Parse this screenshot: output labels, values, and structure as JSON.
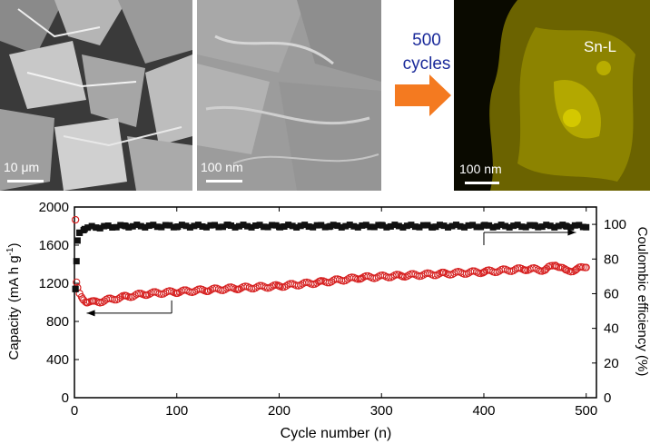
{
  "panels": {
    "sem_low": {
      "scale_label": "10 μm"
    },
    "sem_high": {
      "scale_label": "100 nm"
    },
    "arrow": {
      "line1": "500",
      "line2": "cycles",
      "color": "#f47a20"
    },
    "eds": {
      "element": "Sn-L",
      "scale_label": "100 nm"
    }
  },
  "chart_data": {
    "type": "scatter",
    "xlabel": "Cycle number (n)",
    "ylabel_left": "Capacity (mA h g-1)",
    "ylabel_right": "Coulombic efficiency (%)",
    "xlim": [
      0,
      510
    ],
    "ylim_left": [
      0,
      2000
    ],
    "ylim_right": [
      0,
      110
    ],
    "xticks": [
      0,
      100,
      200,
      300,
      400,
      500
    ],
    "yticks_left": [
      0,
      400,
      800,
      1200,
      1600,
      2000
    ],
    "yticks_right": [
      0,
      20,
      40,
      60,
      80,
      100
    ],
    "series": [
      {
        "axis": "left",
        "marker": "open-circle",
        "color": "#d62020",
        "x": [
          1,
          2,
          3,
          5,
          8,
          12,
          18,
          25,
          35,
          50,
          70,
          100,
          130,
          160,
          200,
          240,
          280,
          320,
          360,
          400,
          440,
          460,
          470,
          480,
          490,
          500
        ],
        "values": [
          1860,
          1200,
          1140,
          1080,
          1040,
          1010,
          1000,
          1010,
          1030,
          1060,
          1090,
          1110,
          1130,
          1150,
          1170,
          1210,
          1260,
          1280,
          1300,
          1320,
          1350,
          1340,
          1400,
          1330,
          1340,
          1380
        ]
      },
      {
        "axis": "right",
        "marker": "filled-square",
        "color": "#111111",
        "x": [
          1,
          2,
          3,
          5,
          10,
          25,
          50,
          100,
          150,
          200,
          250,
          300,
          350,
          400,
          450,
          480,
          500
        ],
        "values": [
          62,
          78,
          90,
          95,
          98,
          98.5,
          99,
          99,
          99,
          99,
          99,
          99,
          99,
          99,
          99,
          99,
          99
        ]
      }
    ],
    "annotations": [
      {
        "points_to": "left",
        "x_start": 95,
        "x_end": 12,
        "y_left": 1020
      },
      {
        "points_to": "right",
        "x_start": 400,
        "x_end": 490,
        "y_left": 1600
      }
    ]
  }
}
